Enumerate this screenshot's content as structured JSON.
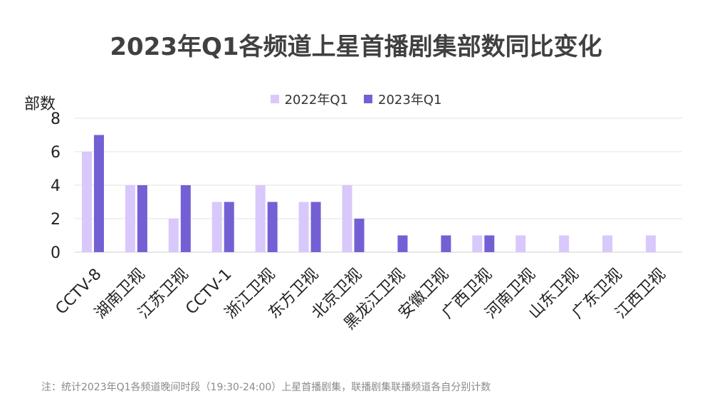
{
  "chart_data": {
    "type": "bar",
    "title": "2023年Q1各频道上星首播剧集部数同比变化",
    "ylabel": "部数",
    "xlabel": "",
    "ylim": [
      0,
      8
    ],
    "yticks": [
      0,
      2,
      4,
      6,
      8
    ],
    "grid": true,
    "legend_position": "top",
    "categories": [
      "CCTV-8",
      "湖南卫视",
      "江苏卫视",
      "CCTV-1",
      "浙江卫视",
      "东方卫视",
      "北京卫视",
      "黑龙江卫视",
      "安徽卫视",
      "广西卫视",
      "河南卫视",
      "山东卫视",
      "广东卫视",
      "江西卫视"
    ],
    "series": [
      {
        "name": "2022年Q1",
        "color": "#d9c8fb",
        "values": [
          6,
          4,
          2,
          3,
          4,
          3,
          4,
          0,
          0,
          1,
          1,
          1,
          1,
          1
        ]
      },
      {
        "name": "2023年Q1",
        "color": "#7460d4",
        "values": [
          7,
          4,
          4,
          3,
          3,
          3,
          2,
          1,
          1,
          1,
          0,
          0,
          0,
          0
        ]
      }
    ]
  },
  "note": "注：统计2023年Q1各频道晚间时段（19:30-24:00）上星首播剧集，联播剧集联播频道各自分别计数"
}
